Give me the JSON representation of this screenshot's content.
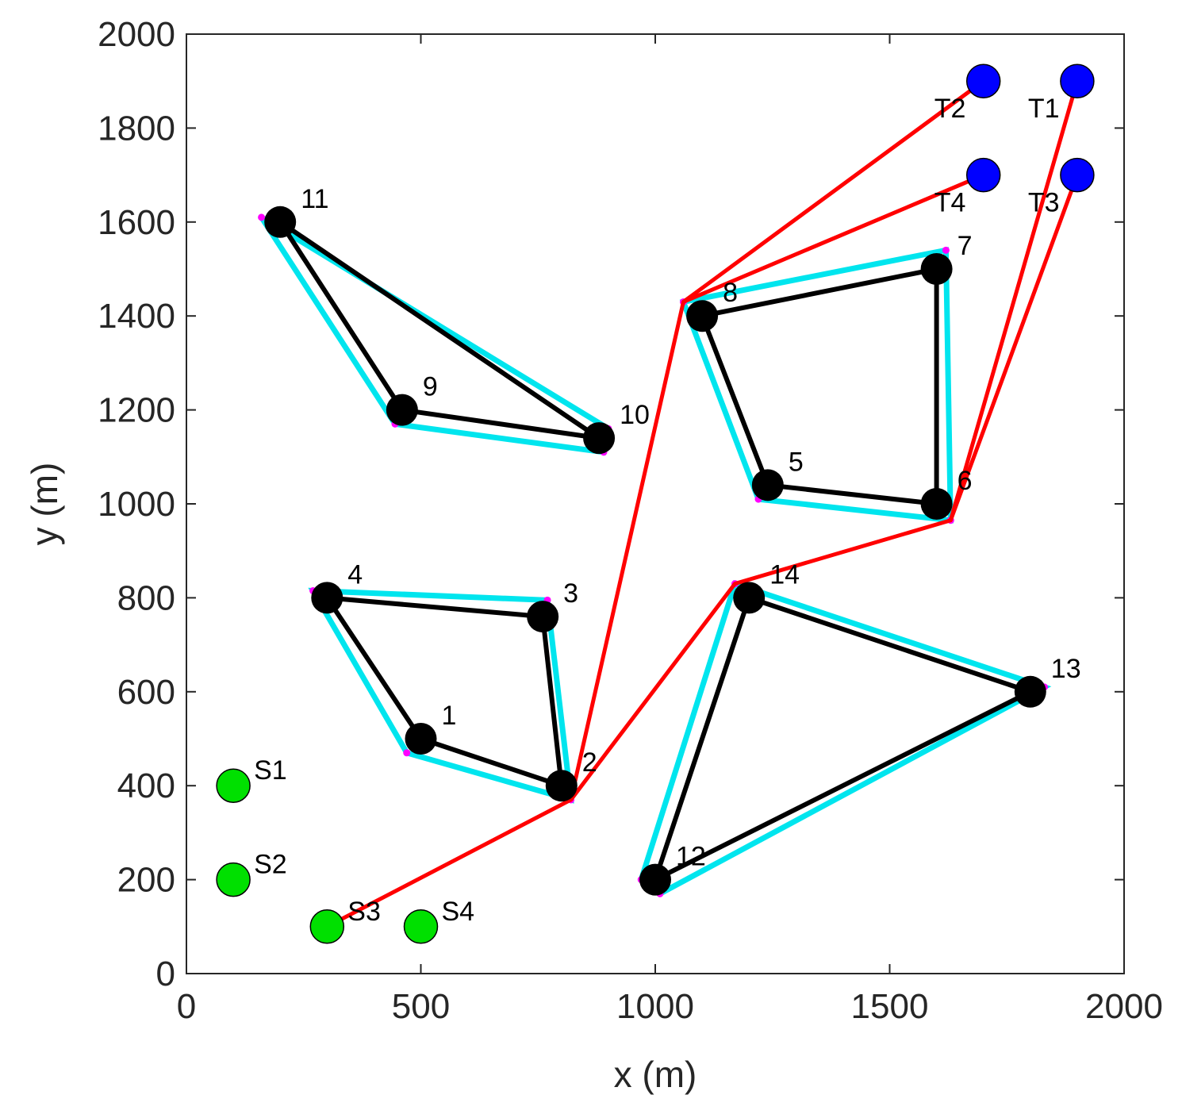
{
  "chart_data": {
    "type": "scatter",
    "title": "",
    "xlabel": "x (m)",
    "ylabel": "y (m)",
    "xlim": [
      0,
      2000
    ],
    "ylim": [
      0,
      2000
    ],
    "xticks": [
      0,
      500,
      1000,
      1500,
      2000
    ],
    "yticks": [
      0,
      200,
      400,
      600,
      800,
      1000,
      1200,
      1400,
      1600,
      1800,
      2000
    ],
    "grid": false,
    "colors": {
      "sensor": "#000000",
      "source": "#00e000",
      "target": "#0000ff",
      "edge": "#000000",
      "hull": "#00e5ee",
      "hull_corner": "#ff00ff",
      "path": "#ff0000"
    },
    "sensors": [
      {
        "label": "1",
        "x": 500,
        "y": 500
      },
      {
        "label": "2",
        "x": 800,
        "y": 400
      },
      {
        "label": "3",
        "x": 760,
        "y": 760
      },
      {
        "label": "4",
        "x": 300,
        "y": 800
      },
      {
        "label": "5",
        "x": 1240,
        "y": 1040
      },
      {
        "label": "6",
        "x": 1600,
        "y": 1000
      },
      {
        "label": "7",
        "x": 1600,
        "y": 1500
      },
      {
        "label": "8",
        "x": 1100,
        "y": 1400
      },
      {
        "label": "9",
        "x": 460,
        "y": 1200
      },
      {
        "label": "10",
        "x": 880,
        "y": 1140
      },
      {
        "label": "11",
        "x": 200,
        "y": 1600
      },
      {
        "label": "12",
        "x": 1000,
        "y": 200
      },
      {
        "label": "13",
        "x": 1800,
        "y": 600
      },
      {
        "label": "14",
        "x": 1200,
        "y": 800
      }
    ],
    "sources": [
      {
        "label": "S1",
        "x": 100,
        "y": 400
      },
      {
        "label": "S2",
        "x": 100,
        "y": 200
      },
      {
        "label": "S3",
        "x": 300,
        "y": 100
      },
      {
        "label": "S4",
        "x": 500,
        "y": 100
      }
    ],
    "targets": [
      {
        "label": "T1",
        "x": 1900,
        "y": 1900
      },
      {
        "label": "T2",
        "x": 1700,
        "y": 1900
      },
      {
        "label": "T3",
        "x": 1900,
        "y": 1700
      },
      {
        "label": "T4",
        "x": 1700,
        "y": 1700
      }
    ],
    "clusters": [
      {
        "members": [
          "4",
          "3",
          "2",
          "1"
        ],
        "hull": [
          [
            270,
            815
          ],
          [
            770,
            795
          ],
          [
            820,
            370
          ],
          [
            470,
            470
          ]
        ]
      },
      {
        "members": [
          "11",
          "9",
          "10"
        ],
        "hull": [
          [
            160,
            1610
          ],
          [
            445,
            1170
          ],
          [
            890,
            1110
          ],
          [
            900,
            1160
          ]
        ]
      },
      {
        "members": [
          "8",
          "7",
          "6",
          "5"
        ],
        "hull": [
          [
            1060,
            1430
          ],
          [
            1620,
            1540
          ],
          [
            1630,
            965
          ],
          [
            1220,
            1010
          ]
        ]
      },
      {
        "members": [
          "14",
          "13",
          "12"
        ],
        "hull": [
          [
            1170,
            830
          ],
          [
            1830,
            610
          ],
          [
            1010,
            170
          ],
          [
            970,
            200
          ]
        ]
      }
    ],
    "paths": [
      [
        [
          300,
          100
        ],
        [
          820,
          370
        ],
        [
          1060,
          1430
        ],
        [
          1700,
          1900
        ]
      ],
      [
        [
          1060,
          1430
        ],
        [
          1700,
          1700
        ]
      ],
      [
        [
          820,
          370
        ],
        [
          1170,
          830
        ],
        [
          1630,
          965
        ],
        [
          1900,
          1900
        ]
      ],
      [
        [
          1630,
          965
        ],
        [
          1900,
          1700
        ]
      ]
    ]
  }
}
